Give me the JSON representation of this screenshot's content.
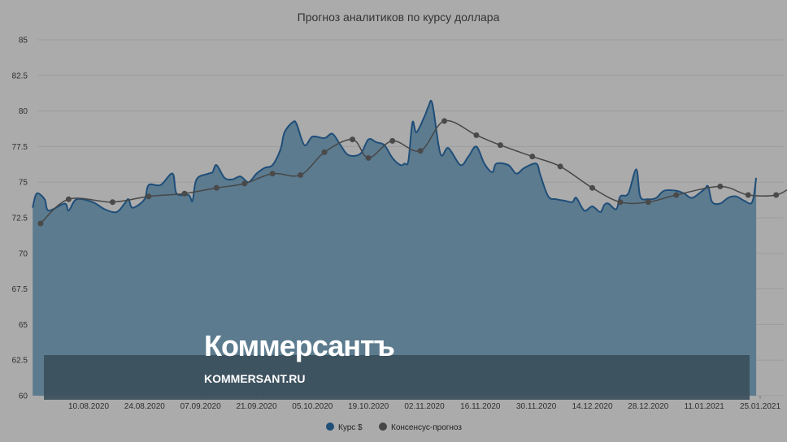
{
  "chart_data": {
    "type": "area",
    "title": "Прогноз аналитиков по курсу доллара",
    "ylim": [
      60,
      85
    ],
    "y_ticks": [
      "60",
      "62.5",
      "65",
      "67.5",
      "70",
      "72.5",
      "75",
      "77.5",
      "80",
      "82.5",
      "85"
    ],
    "x_ticks": [
      "10.08.2020",
      "24.08.2020",
      "07.09.2020",
      "21.09.2020",
      "05.10.2020",
      "19.10.2020",
      "02.11.2020",
      "16.11.2020",
      "30.11.2020",
      "14.12.2020",
      "28.12.2020",
      "11.01.2021",
      "25.01.2021"
    ],
    "legend_position": "bottom-center",
    "grid": true,
    "series": [
      {
        "name": "Курс $",
        "type": "area",
        "color": "#1f4e79",
        "fill": "#5c7b8f",
        "values": [
          [
            "27.07.2020",
            73.2
          ],
          [
            "28.07.2020",
            74.2
          ],
          [
            "30.07.2020",
            73.8
          ],
          [
            "31.07.2020",
            73.0
          ],
          [
            "04.08.2020",
            73.5
          ],
          [
            "05.08.2020",
            73.0
          ],
          [
            "07.08.2020",
            73.8
          ],
          [
            "11.08.2020",
            73.6
          ],
          [
            "14.08.2020",
            73.1
          ],
          [
            "17.08.2020",
            72.9
          ],
          [
            "19.08.2020",
            73.5
          ],
          [
            "20.08.2020",
            73.8
          ],
          [
            "21.08.2020",
            73.2
          ],
          [
            "24.08.2020",
            73.8
          ],
          [
            "25.08.2020",
            74.8
          ],
          [
            "28.08.2020",
            74.8
          ],
          [
            "31.08.2020",
            75.6
          ],
          [
            "01.09.2020",
            74.2
          ],
          [
            "04.09.2020",
            74.1
          ],
          [
            "05.09.2020",
            73.7
          ],
          [
            "06.09.2020",
            75.2
          ],
          [
            "09.09.2020",
            75.6
          ],
          [
            "10.09.2020",
            75.7
          ],
          [
            "11.09.2020",
            76.2
          ],
          [
            "13.09.2020",
            75.3
          ],
          [
            "15.09.2020",
            75.2
          ],
          [
            "17.09.2020",
            75.4
          ],
          [
            "19.09.2020",
            75.0
          ],
          [
            "21.09.2020",
            75.6
          ],
          [
            "23.09.2020",
            76.0
          ],
          [
            "25.09.2020",
            76.2
          ],
          [
            "27.09.2020",
            77.3
          ],
          [
            "28.09.2020",
            78.5
          ],
          [
            "30.09.2020",
            79.2
          ],
          [
            "01.10.2020",
            79.1
          ],
          [
            "03.10.2020",
            77.6
          ],
          [
            "05.10.2020",
            78.2
          ],
          [
            "08.10.2020",
            78.1
          ],
          [
            "10.10.2020",
            78.4
          ],
          [
            "12.10.2020",
            77.6
          ],
          [
            "14.10.2020",
            76.9
          ],
          [
            "17.10.2020",
            77.0
          ],
          [
            "19.10.2020",
            78.0
          ],
          [
            "21.10.2020",
            77.8
          ],
          [
            "23.10.2020",
            77.6
          ],
          [
            "25.10.2020",
            76.7
          ],
          [
            "27.10.2020",
            76.2
          ],
          [
            "28.10.2020",
            76.3
          ],
          [
            "29.10.2020",
            76.5
          ],
          [
            "30.10.2020",
            79.2
          ],
          [
            "31.10.2020",
            78.5
          ],
          [
            "02.11.2020",
            79.6
          ],
          [
            "03.11.2020",
            80.3
          ],
          [
            "04.11.2020",
            80.5
          ],
          [
            "06.11.2020",
            77.0
          ],
          [
            "08.11.2020",
            77.4
          ],
          [
            "11.11.2020",
            76.2
          ],
          [
            "13.11.2020",
            76.8
          ],
          [
            "15.11.2020",
            77.5
          ],
          [
            "17.11.2020",
            76.3
          ],
          [
            "19.11.2020",
            75.7
          ],
          [
            "20.11.2020",
            76.3
          ],
          [
            "23.11.2020",
            76.2
          ],
          [
            "25.11.2020",
            75.6
          ],
          [
            "27.11.2020",
            76.0
          ],
          [
            "30.11.2020",
            76.3
          ],
          [
            "01.12.2020",
            75.5
          ],
          [
            "03.12.2020",
            74.0
          ],
          [
            "05.12.2020",
            73.8
          ],
          [
            "07.12.2020",
            73.7
          ],
          [
            "09.12.2020",
            73.6
          ],
          [
            "10.12.2020",
            73.9
          ],
          [
            "12.12.2020",
            73.0
          ],
          [
            "14.12.2020",
            73.3
          ],
          [
            "16.12.2020",
            72.9
          ],
          [
            "17.12.2020",
            73.4
          ],
          [
            "18.12.2020",
            73.5
          ],
          [
            "20.12.2020",
            73.1
          ],
          [
            "21.12.2020",
            74.0
          ],
          [
            "23.12.2020",
            74.2
          ],
          [
            "25.12.2020",
            75.9
          ],
          [
            "26.12.2020",
            74.0
          ],
          [
            "28.12.2020",
            73.8
          ],
          [
            "30.12.2020",
            73.9
          ],
          [
            "01.01.2021",
            74.4
          ],
          [
            "04.01.2021",
            74.4
          ],
          [
            "06.01.2021",
            74.2
          ],
          [
            "08.01.2021",
            73.9
          ],
          [
            "11.01.2021",
            74.5
          ],
          [
            "12.01.2021",
            74.7
          ],
          [
            "13.01.2021",
            73.6
          ],
          [
            "15.01.2021",
            73.5
          ],
          [
            "17.01.2021",
            73.9
          ],
          [
            "19.01.2021",
            74.0
          ],
          [
            "21.01.2021",
            73.7
          ],
          [
            "23.01.2021",
            73.6
          ],
          [
            "24.01.2021",
            75.3
          ]
        ]
      },
      {
        "name": "Консенсус-прогноз",
        "type": "line",
        "color": "#474747",
        "values": [
          [
            "29.07.2020",
            72.1
          ],
          [
            "05.08.2020",
            73.8
          ],
          [
            "16.08.2020",
            73.6
          ],
          [
            "25.08.2020",
            74.0
          ],
          [
            "03.09.2020",
            74.2
          ],
          [
            "11.09.2020",
            74.6
          ],
          [
            "18.09.2020",
            74.9
          ],
          [
            "25.09.2020",
            75.6
          ],
          [
            "02.10.2020",
            75.5
          ],
          [
            "08.10.2020",
            77.1
          ],
          [
            "15.10.2020",
            78.0
          ],
          [
            "19.10.2020",
            76.7
          ],
          [
            "25.10.2020",
            77.9
          ],
          [
            "01.11.2020",
            77.2
          ],
          [
            "07.11.2020",
            79.3
          ],
          [
            "15.11.2020",
            78.3
          ],
          [
            "21.11.2020",
            77.6
          ],
          [
            "29.11.2020",
            76.8
          ],
          [
            "06.12.2020",
            76.1
          ],
          [
            "14.12.2020",
            74.6
          ],
          [
            "21.12.2020",
            73.6
          ],
          [
            "28.12.2020",
            73.6
          ],
          [
            "04.01.2021",
            74.1
          ],
          [
            "15.01.2021",
            74.7
          ],
          [
            "22.01.2021",
            74.1
          ],
          [
            "29.01.2021",
            74.1
          ],
          [
            "02.02.2021",
            74.7
          ]
        ]
      }
    ]
  },
  "watermark": {
    "brand": "Коммерсантъ",
    "url": "KOMMERSANT.RU"
  }
}
